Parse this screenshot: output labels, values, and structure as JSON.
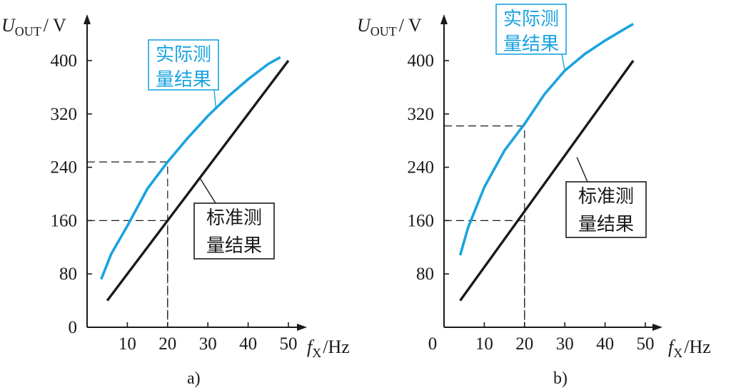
{
  "colors": {
    "actual": "#1aa3e0",
    "standard": "#1a1a1a"
  },
  "chart_data": [
    {
      "type": "line",
      "panel_label": "a)",
      "ylabel": {
        "main": "U",
        "sub": "OUT",
        "unit": "/ V"
      },
      "xlabel": {
        "main": "f",
        "sub": "X",
        "unit": "/Hz"
      },
      "xlim": [
        0,
        55
      ],
      "ylim": [
        0,
        430
      ],
      "xticks": [
        10,
        20,
        30,
        40,
        50
      ],
      "yticks": [
        0,
        80,
        160,
        240,
        320,
        400
      ],
      "series": [
        {
          "name": "实际测量结果",
          "role": "actual",
          "x": [
            3.5,
            6,
            10,
            15,
            20,
            25,
            30,
            35,
            40,
            45,
            48
          ],
          "y": [
            72,
            110,
            152,
            208,
            248,
            284,
            317,
            346,
            372,
            395,
            405
          ]
        },
        {
          "name": "标准测量结果",
          "role": "standard",
          "x": [
            5,
            50
          ],
          "y": [
            40,
            400
          ]
        }
      ],
      "guides": [
        {
          "x": 20,
          "y": 248
        },
        {
          "x": 20,
          "y": 160
        }
      ],
      "annotations": [
        {
          "role": "actual",
          "lines": [
            "实际测",
            "量结果"
          ],
          "target_x": 32,
          "target_y": 328,
          "position": "top-left"
        },
        {
          "role": "standard",
          "lines": [
            "标准测",
            "量结果"
          ],
          "target_x": 28,
          "target_y": 224,
          "position": "right"
        }
      ]
    },
    {
      "type": "line",
      "panel_label": "b)",
      "ylabel": {
        "main": "U",
        "sub": "OUT",
        "unit": "/ V"
      },
      "xlabel": {
        "main": "f",
        "sub": "X",
        "unit": "/Hz"
      },
      "xlim": [
        0,
        55
      ],
      "ylim": [
        0,
        430
      ],
      "xticks": [
        0,
        10,
        20,
        30,
        40,
        50
      ],
      "yticks": [
        80,
        160,
        240,
        320,
        400
      ],
      "series": [
        {
          "name": "实际测量结果",
          "role": "actual",
          "x": [
            4,
            6,
            10,
            15,
            20,
            25,
            30,
            35,
            40,
            45,
            47
          ],
          "y": [
            108,
            150,
            210,
            265,
            305,
            350,
            385,
            410,
            430,
            448,
            455
          ]
        },
        {
          "name": "标准测量结果",
          "role": "standard",
          "x": [
            4,
            47
          ],
          "y": [
            40,
            400
          ]
        }
      ],
      "guides": [
        {
          "x": 20,
          "y": 302
        },
        {
          "x": 20,
          "y": 160
        }
      ],
      "annotations": [
        {
          "role": "actual",
          "lines": [
            "实际测",
            "量结果"
          ],
          "target_x": 30,
          "target_y": 385,
          "position": "top-left"
        },
        {
          "role": "standard",
          "lines": [
            "标准测",
            "量结果"
          ],
          "target_x": 33,
          "target_y": 255,
          "position": "right"
        }
      ]
    }
  ]
}
